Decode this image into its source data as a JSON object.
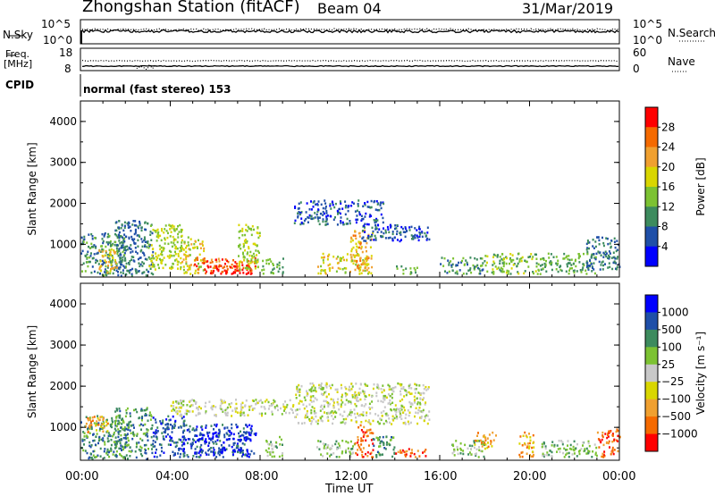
{
  "header": {
    "station": "Zhongshan Station (fitACF)",
    "beam": "Beam 04",
    "date": "31/Mar/2019"
  },
  "sky_panel": {
    "left_label": "N.Sky",
    "right_label": "N.Search",
    "left_ticks": [
      "10^5",
      "10^0"
    ],
    "right_ticks": [
      "10^5",
      "10^0"
    ]
  },
  "freq_panel": {
    "left_label_1": "Freq.",
    "left_label_2": "[MHz]",
    "right_label": "Nave",
    "left_ticks": [
      "18",
      "8"
    ],
    "right_ticks": [
      "60",
      "0"
    ]
  },
  "cpid": {
    "label": "CPID",
    "text": "normal (fast stereo) 153"
  },
  "colors": {
    "power_scale": [
      "#0000ff",
      "#1f4fa8",
      "#3d8b5e",
      "#7cc232",
      "#d9d600",
      "#f0a030",
      "#f56a00",
      "#ff0000"
    ],
    "velocity_scale": [
      "#ff0000",
      "#f56a00",
      "#f0a030",
      "#d9d600",
      "#c8c8c8",
      "#7cc232",
      "#3d8b5e",
      "#1f4fa8",
      "#0000ff"
    ]
  },
  "chart_data": [
    {
      "type": "heatmap",
      "name": "power",
      "ylabel": "Slant Range [km]",
      "yticks": [
        "1000",
        "2000",
        "3000",
        "4000"
      ],
      "ylim": [
        200,
        4500
      ],
      "colorbar_label": "Power [dB]",
      "colorbar_ticks": [
        "4",
        "8",
        "12",
        "16",
        "20",
        "24",
        "28"
      ],
      "colorbar_range": [
        0,
        32
      ],
      "blobs": [
        {
          "t0": 0.0,
          "t1": 2.0,
          "r0": 250,
          "r1": 1300,
          "v": 10
        },
        {
          "t0": 1.5,
          "t1": 3.2,
          "r0": 250,
          "r1": 1600,
          "v": 8
        },
        {
          "t0": 0.8,
          "t1": 1.6,
          "r0": 300,
          "r1": 900,
          "v": 20
        },
        {
          "t0": 3.0,
          "t1": 4.5,
          "r0": 400,
          "r1": 1500,
          "v": 16
        },
        {
          "t0": 4.5,
          "t1": 5.5,
          "r0": 300,
          "r1": 1200,
          "v": 18
        },
        {
          "t0": 5.0,
          "t1": 7.8,
          "r0": 300,
          "r1": 700,
          "v": 27
        },
        {
          "t0": 5.5,
          "t1": 7.6,
          "r0": 300,
          "r1": 500,
          "v": 30
        },
        {
          "t0": 7.0,
          "t1": 8.0,
          "r0": 400,
          "r1": 1500,
          "v": 16
        },
        {
          "t0": 8.0,
          "t1": 9.0,
          "r0": 300,
          "r1": 700,
          "v": 12
        },
        {
          "t0": 9.5,
          "t1": 13.5,
          "r0": 1500,
          "r1": 2100,
          "v": 6
        },
        {
          "t0": 10.5,
          "t1": 12.8,
          "r0": 300,
          "r1": 800,
          "v": 18
        },
        {
          "t0": 12.0,
          "t1": 13.0,
          "r0": 300,
          "r1": 1400,
          "v": 22
        },
        {
          "t0": 12.5,
          "t1": 15.5,
          "r0": 1100,
          "r1": 1500,
          "v": 6
        },
        {
          "t0": 14.0,
          "t1": 15.0,
          "r0": 300,
          "r1": 500,
          "v": 12
        },
        {
          "t0": 16.0,
          "t1": 18.0,
          "r0": 300,
          "r1": 700,
          "v": 10
        },
        {
          "t0": 18.0,
          "t1": 20.5,
          "r0": 300,
          "r1": 800,
          "v": 14
        },
        {
          "t0": 20.5,
          "t1": 23.0,
          "r0": 300,
          "r1": 800,
          "v": 12
        },
        {
          "t0": 22.5,
          "t1": 24.0,
          "r0": 400,
          "r1": 1200,
          "v": 8
        }
      ]
    },
    {
      "type": "heatmap",
      "name": "velocity",
      "ylabel": "Slant Range [km]",
      "yticks": [
        "1000",
        "2000",
        "3000",
        "4000"
      ],
      "ylim": [
        200,
        4500
      ],
      "colorbar_label": "Velocity [m s⁻¹]",
      "colorbar_ticks": [
        "1000",
        "500",
        "100",
        "25",
        "-25",
        "-100",
        "-500",
        "-1000"
      ],
      "blobs": [
        {
          "t0": 0.0,
          "t1": 2.0,
          "r0": 250,
          "r1": 1300,
          "v": 6
        },
        {
          "t0": 1.5,
          "t1": 3.2,
          "r0": 250,
          "r1": 1500,
          "v": 6
        },
        {
          "t0": 0.2,
          "t1": 1.2,
          "r0": 900,
          "r1": 1300,
          "v": 2
        },
        {
          "t0": 3.2,
          "t1": 4.6,
          "r0": 300,
          "r1": 1300,
          "v": 7
        },
        {
          "t0": 4.5,
          "t1": 7.6,
          "r0": 300,
          "r1": 1100,
          "v": 7
        },
        {
          "t0": 5.0,
          "t1": 7.8,
          "r0": 700,
          "r1": 900,
          "v": 8
        },
        {
          "t0": 5.0,
          "t1": 7.8,
          "r0": 350,
          "r1": 500,
          "v": 8
        },
        {
          "t0": 4.0,
          "t1": 9.5,
          "r0": 1300,
          "r1": 1700,
          "v": 4
        },
        {
          "t0": 8.2,
          "t1": 9.0,
          "r0": 300,
          "r1": 800,
          "v": 5
        },
        {
          "t0": 9.5,
          "t1": 15.5,
          "r0": 1100,
          "r1": 2100,
          "v": 4
        },
        {
          "t0": 10.5,
          "t1": 12.2,
          "r0": 300,
          "r1": 700,
          "v": 5
        },
        {
          "t0": 12.2,
          "t1": 13.0,
          "r0": 300,
          "r1": 1100,
          "v": 1
        },
        {
          "t0": 13.0,
          "t1": 14.0,
          "r0": 300,
          "r1": 800,
          "v": 6
        },
        {
          "t0": 14.0,
          "t1": 15.5,
          "r0": 300,
          "r1": 500,
          "v": 1
        },
        {
          "t0": 16.5,
          "t1": 18.0,
          "r0": 300,
          "r1": 700,
          "v": 5
        },
        {
          "t0": 17.5,
          "t1": 18.5,
          "r0": 500,
          "r1": 900,
          "v": 2
        },
        {
          "t0": 19.5,
          "t1": 20.2,
          "r0": 300,
          "r1": 900,
          "v": 2
        },
        {
          "t0": 20.5,
          "t1": 23.0,
          "r0": 300,
          "r1": 700,
          "v": 5
        },
        {
          "t0": 23.0,
          "t1": 24.0,
          "r0": 300,
          "r1": 1000,
          "v": 1
        }
      ]
    }
  ],
  "time_axis": {
    "xlabel": "Time UT",
    "ticks": [
      "00:00",
      "04:00",
      "08:00",
      "12:00",
      "16:00",
      "20:00",
      "00:00"
    ]
  }
}
